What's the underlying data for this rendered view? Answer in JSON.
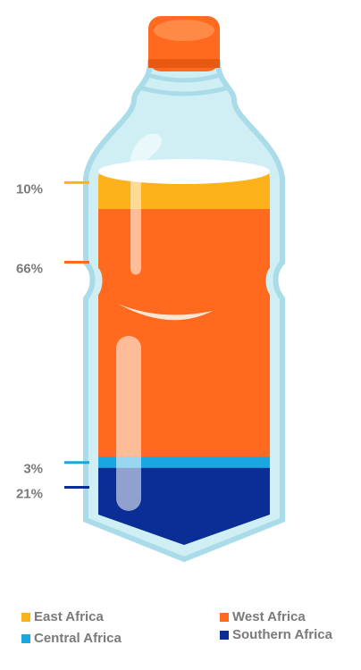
{
  "chart_data": {
    "type": "pie",
    "title": "",
    "categories": [
      "East Africa",
      "West Africa",
      "Central Africa",
      "Southern Africa"
    ],
    "values": [
      10,
      66,
      3,
      21
    ],
    "labels": [
      "10%",
      "66%",
      "3%",
      "21%"
    ],
    "unit": "%",
    "colors": [
      "#FDB21C",
      "#FF6A1E",
      "#1AA6E0",
      "#0B2E96"
    ],
    "legend_position": "bottom",
    "grid": false
  },
  "legend": [
    {
      "label": "East Africa",
      "color": "#FDB21C"
    },
    {
      "label": "West Africa",
      "color": "#FF6A1E"
    },
    {
      "label": "Central Africa",
      "color": "#1AA6E0"
    },
    {
      "label": "Southern Africa",
      "color": "#0B2E96"
    }
  ]
}
